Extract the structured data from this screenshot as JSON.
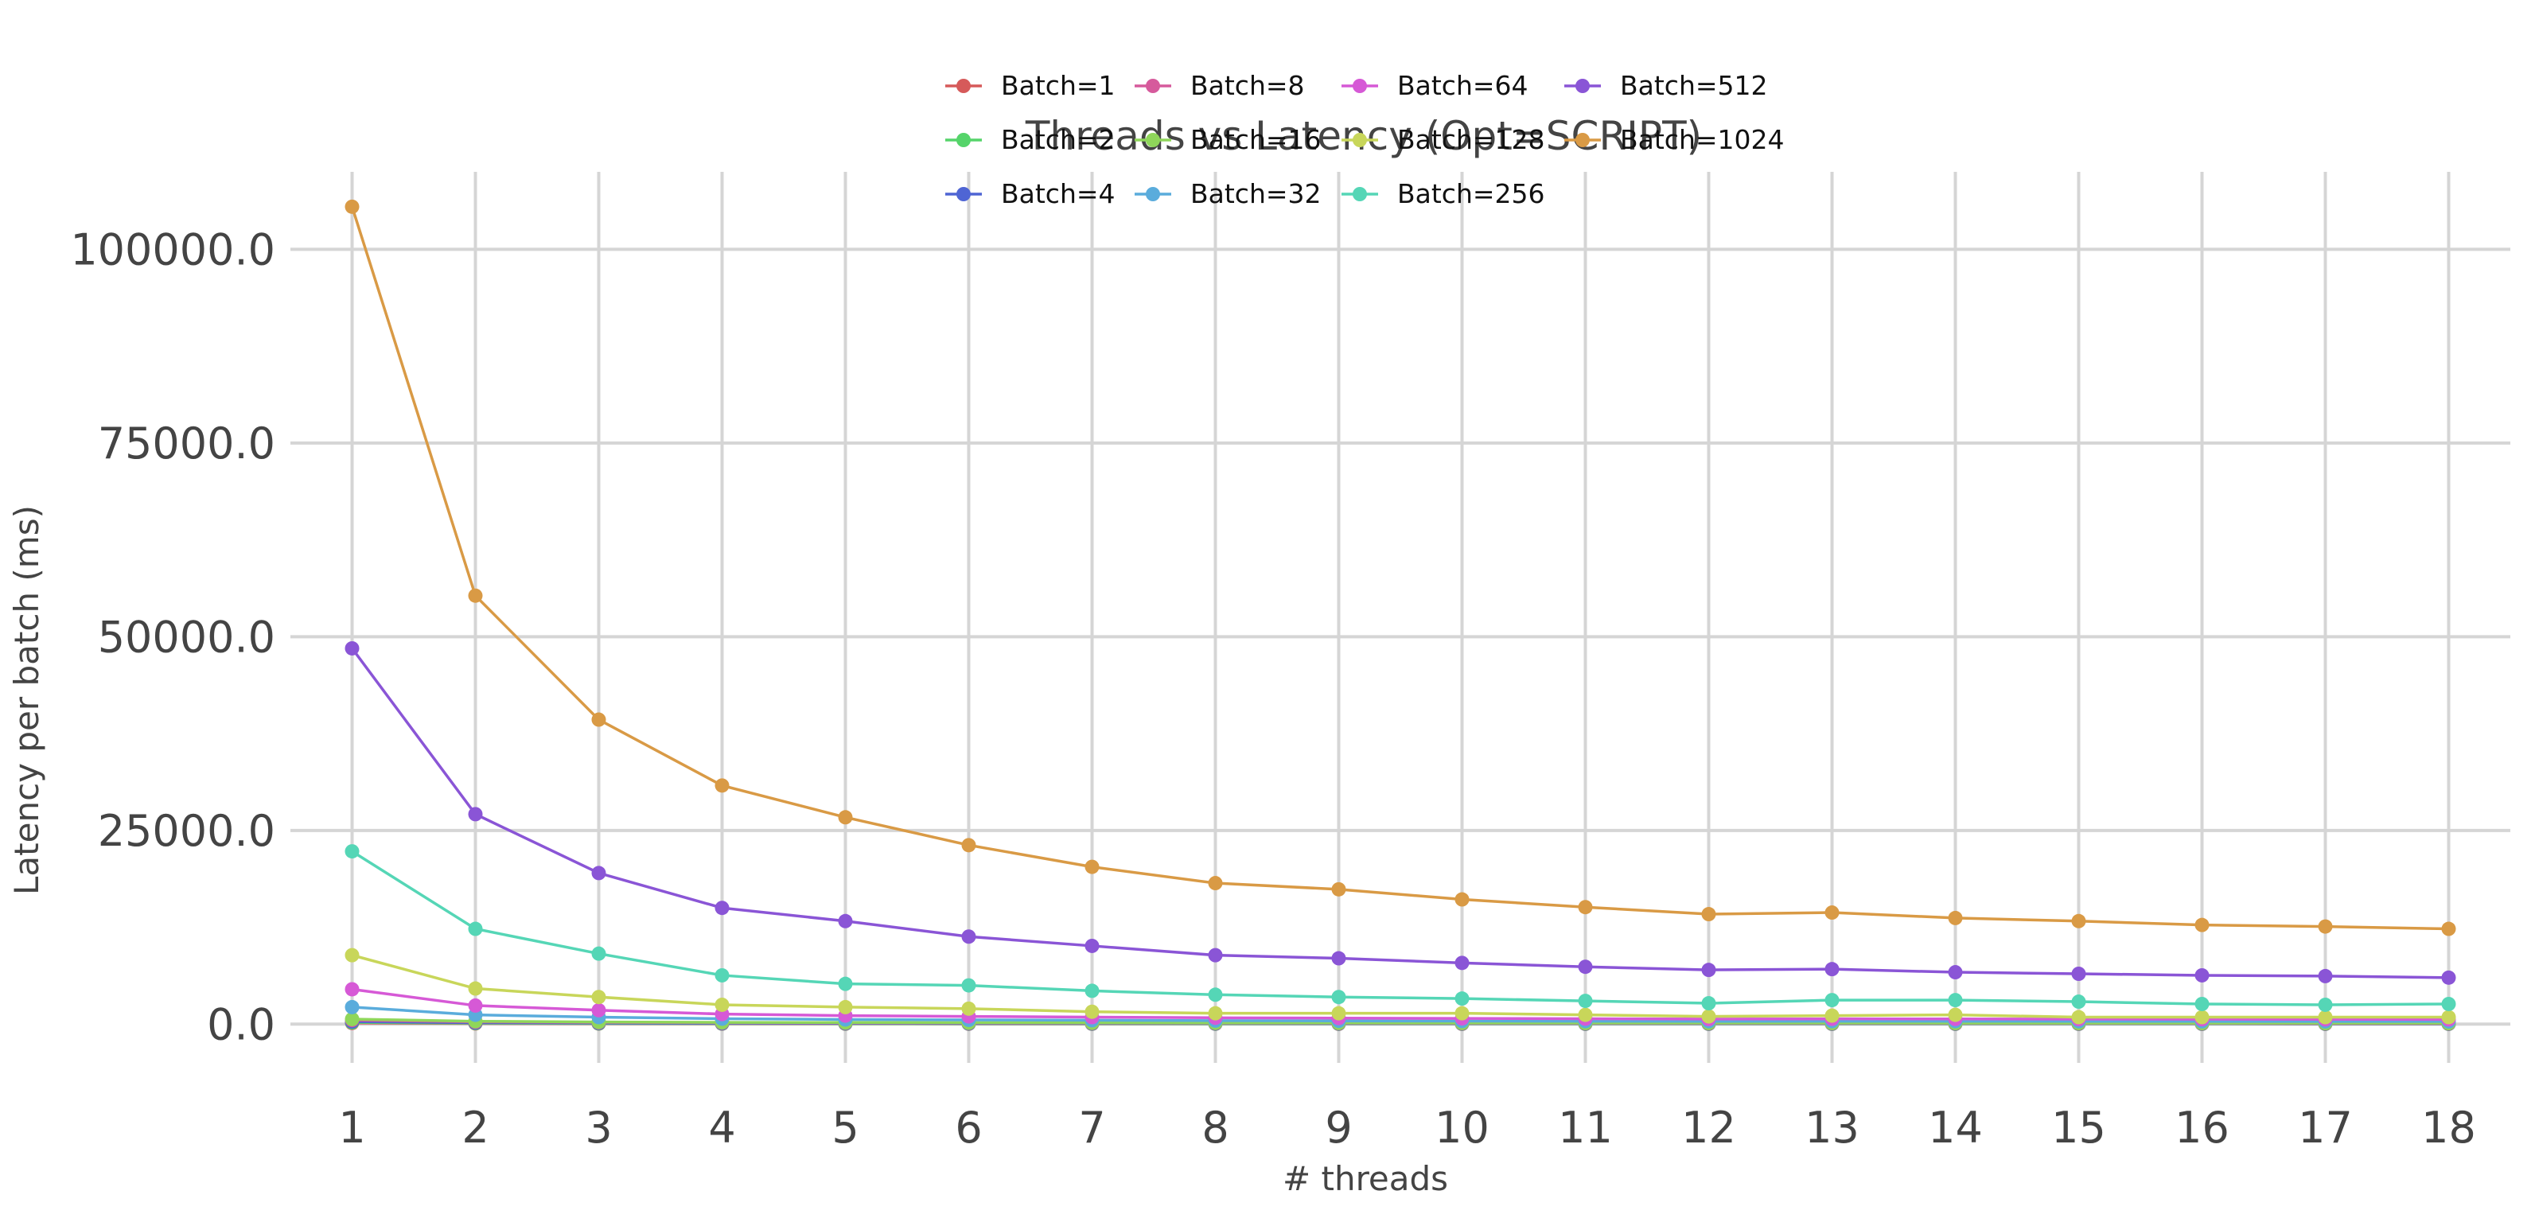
{
  "chart_data": {
    "type": "line",
    "title": "Threads vs Latency (Opt=SCRIPT)",
    "xlabel": "# threads",
    "ylabel": "Latency per batch (ms)",
    "x": [
      1,
      2,
      3,
      4,
      5,
      6,
      7,
      8,
      9,
      10,
      11,
      12,
      13,
      14,
      15,
      16,
      17,
      18
    ],
    "xlim": [
      0.5,
      18.5
    ],
    "ylim": [
      -5000,
      110000
    ],
    "yticks": [
      0,
      25000,
      50000,
      75000,
      100000
    ],
    "ytick_labels": [
      "0.0",
      "25000.0",
      "50000.0",
      "75000.0",
      "100000.0"
    ],
    "grid": true,
    "legend_position": "top-center",
    "series": [
      {
        "name": "Batch=1",
        "color": "#d65a5a",
        "values": [
          150,
          90,
          70,
          60,
          55,
          50,
          48,
          45,
          43,
          42,
          40,
          40,
          40,
          39,
          38,
          38,
          37,
          37
        ]
      },
      {
        "name": "Batch=2",
        "color": "#55d46a",
        "values": [
          220,
          130,
          100,
          85,
          75,
          70,
          65,
          62,
          60,
          58,
          56,
          55,
          55,
          54,
          53,
          52,
          52,
          52
        ]
      },
      {
        "name": "Batch=4",
        "color": "#4f65d4",
        "values": [
          330,
          190,
          150,
          120,
          110,
          100,
          95,
          90,
          88,
          85,
          82,
          80,
          80,
          79,
          78,
          77,
          76,
          76
        ]
      },
      {
        "name": "Batch=8",
        "color": "#d65a9c",
        "values": [
          520,
          300,
          230,
          190,
          170,
          155,
          145,
          135,
          130,
          125,
          120,
          118,
          118,
          116,
          114,
          112,
          110,
          110
        ]
      },
      {
        "name": "Batch=16",
        "color": "#8fd65a",
        "values": [
          650,
          370,
          280,
          230,
          205,
          185,
          170,
          160,
          155,
          150,
          145,
          142,
          142,
          140,
          138,
          136,
          134,
          134
        ]
      },
      {
        "name": "Batch=32",
        "color": "#5aacdc",
        "values": [
          2200,
          1200,
          900,
          700,
          600,
          550,
          500,
          450,
          420,
          400,
          380,
          370,
          380,
          380,
          370,
          360,
          350,
          350
        ]
      },
      {
        "name": "Batch=64",
        "color": "#d659d6",
        "values": [
          4500,
          2400,
          1800,
          1300,
          1100,
          1000,
          900,
          820,
          780,
          740,
          700,
          660,
          680,
          670,
          650,
          630,
          620,
          610
        ]
      },
      {
        "name": "Batch=128",
        "color": "#c8d65a",
        "values": [
          8900,
          4600,
          3500,
          2500,
          2200,
          2000,
          1600,
          1400,
          1400,
          1400,
          1200,
          1000,
          1100,
          1200,
          900,
          900,
          900,
          900
        ]
      },
      {
        "name": "Batch=256",
        "color": "#55d6b6",
        "values": [
          22300,
          12300,
          9100,
          6300,
          5200,
          5000,
          4300,
          3800,
          3500,
          3300,
          3000,
          2700,
          3100,
          3100,
          2900,
          2600,
          2500,
          2600
        ]
      },
      {
        "name": "Batch=512",
        "color": "#8a55d6",
        "values": [
          48500,
          27100,
          19500,
          15000,
          13300,
          11300,
          10100,
          8900,
          8500,
          7900,
          7400,
          7000,
          7100,
          6700,
          6500,
          6300,
          6200,
          6000
        ]
      },
      {
        "name": "Batch=1024",
        "color": "#d99a45",
        "values": [
          105500,
          55300,
          39300,
          30800,
          26700,
          23100,
          20300,
          18200,
          17400,
          16100,
          15100,
          14200,
          14400,
          13700,
          13300,
          12800,
          12600,
          12300
        ]
      }
    ]
  }
}
